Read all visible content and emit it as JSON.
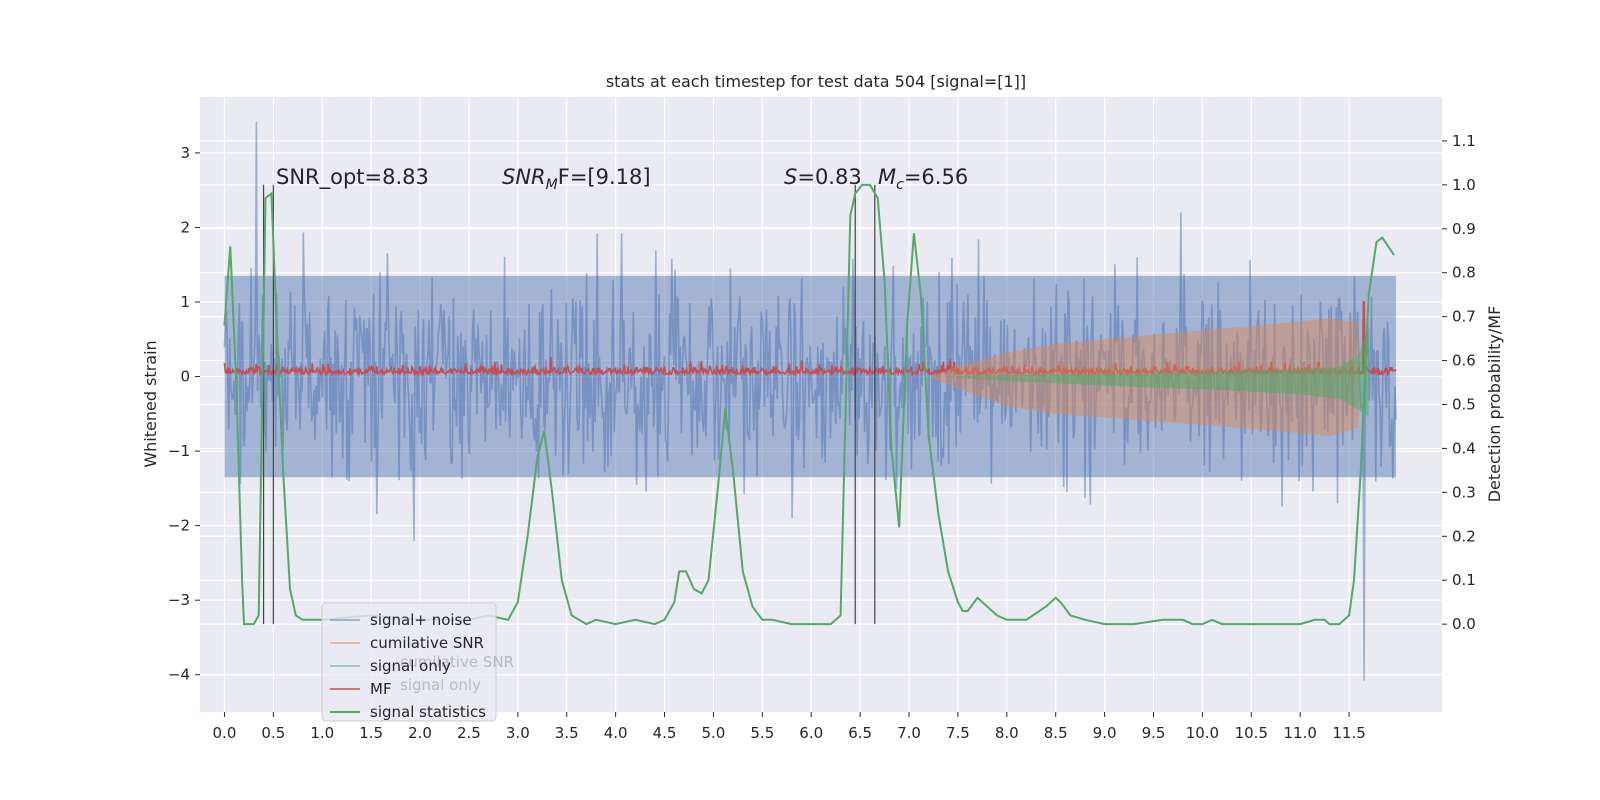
{
  "chart_data": {
    "type": "line",
    "title": "stats at each timestep for test data 504 [signal=[1]]",
    "ylabel": "Whitened strain",
    "y2label": "Detection probability/MF",
    "xlim": [
      -0.25,
      12.45
    ],
    "ylim": [
      -4.5,
      3.75
    ],
    "y2lim": [
      -0.2,
      1.2
    ],
    "grid": true,
    "x_ticks": [
      "0.0",
      "0.5",
      "1.0",
      "1.5",
      "2.0",
      "2.5",
      "3.0",
      "3.5",
      "4.0",
      "4.5",
      "5.0",
      "5.5",
      "6.0",
      "6.5",
      "7.0",
      "7.5",
      "8.0",
      "8.5",
      "9.0",
      "9.5",
      "10.0",
      "10.5",
      "11.0",
      "11.5"
    ],
    "y_ticks": [
      "3",
      "2",
      "1",
      "0",
      "−1",
      "−2",
      "−3",
      "−4"
    ],
    "y2_ticks": [
      "1.1",
      "1.0",
      "0.9",
      "0.8",
      "0.7",
      "0.6",
      "0.5",
      "0.4",
      "0.3",
      "0.2",
      "0.1",
      "0.0"
    ],
    "annotations": {
      "snr_opt": "SNR_opt=8.83",
      "snr_mf_sym": "SNR",
      "snr_mf_sub": "M",
      "snr_mf_rest": "F=[9.18]",
      "s_sym": "S",
      "s_val": "=0.83",
      "mc_sym": "M",
      "mc_sub": "c",
      "mc_val": "=6.56"
    },
    "legend": {
      "location": "lower left",
      "entries": [
        {
          "label": "signal+ noise",
          "color": "#4c72b0"
        },
        {
          "label": "cumilative SNR",
          "color": "#dd8452"
        },
        {
          "label": "signal only",
          "color": "#55a868"
        },
        {
          "label": "MF",
          "color": "#c44e52"
        },
        {
          "label": "signal statistics",
          "color": "#55a868"
        }
      ],
      "ghost_labels": [
        "cumilative SNR",
        "signal only"
      ]
    },
    "series": [
      {
        "name": "signal+ noise",
        "color": "#4c72b0",
        "envelope": {
          "x_range": [
            0.0,
            11.98
          ],
          "upper_typical": 1.9,
          "lower_typical": -1.9,
          "peak_high": 3.42,
          "peak_low": -4.08
        }
      },
      {
        "name": "MF",
        "color": "#c44e52",
        "envelope": {
          "x_range": [
            0.0,
            11.98
          ],
          "base": 0.03,
          "typical_high": 0.2,
          "spike": {
            "x": 11.65,
            "y": 1.0
          }
        }
      },
      {
        "name": "cumilative SNR",
        "color": "#dd8452",
        "band": {
          "x": [
            7.2,
            7.5,
            8.0,
            8.5,
            9.0,
            9.5,
            10.0,
            10.5,
            11.0,
            11.3,
            11.6
          ],
          "upper": [
            0.0,
            0.14,
            0.32,
            0.44,
            0.5,
            0.56,
            0.62,
            0.68,
            0.74,
            0.78,
            0.72
          ],
          "lower": [
            0.0,
            -0.16,
            -0.4,
            -0.5,
            -0.55,
            -0.6,
            -0.65,
            -0.7,
            -0.76,
            -0.8,
            -0.68
          ]
        }
      },
      {
        "name": "signal only",
        "color": "#55a868",
        "band": {
          "x": [
            7.3,
            8.0,
            8.5,
            9.0,
            9.5,
            10.0,
            10.5,
            11.0,
            11.4,
            11.6,
            11.7
          ],
          "upper": [
            0.0,
            0.02,
            0.03,
            0.04,
            0.05,
            0.06,
            0.08,
            0.1,
            0.13,
            0.3,
            0.7
          ],
          "lower": [
            0.0,
            -0.06,
            -0.09,
            -0.12,
            -0.15,
            -0.17,
            -0.2,
            -0.24,
            -0.3,
            -0.45,
            -0.55
          ]
        }
      },
      {
        "name": "signal statistics",
        "color": "#55a868",
        "axis": "right",
        "x": [
          0.0,
          0.06,
          0.12,
          0.18,
          0.2,
          0.3,
          0.35,
          0.42,
          0.48,
          0.53,
          0.6,
          0.67,
          0.73,
          0.8,
          1.0,
          1.5,
          2.0,
          2.5,
          2.7,
          2.9,
          3.0,
          3.1,
          3.2,
          3.27,
          3.35,
          3.45,
          3.55,
          3.7,
          3.8,
          4.0,
          4.2,
          4.4,
          4.5,
          4.6,
          4.65,
          4.72,
          4.8,
          4.88,
          4.95,
          5.05,
          5.12,
          5.2,
          5.3,
          5.4,
          5.5,
          5.6,
          5.8,
          6.0,
          6.2,
          6.3,
          6.4,
          6.45,
          6.52,
          6.6,
          6.68,
          6.75,
          6.82,
          6.9,
          6.98,
          7.05,
          7.12,
          7.2,
          7.3,
          7.4,
          7.5,
          7.55,
          7.6,
          7.7,
          7.8,
          7.9,
          8.0,
          8.2,
          8.4,
          8.5,
          8.55,
          8.65,
          8.8,
          9.0,
          9.3,
          9.6,
          9.8,
          9.9,
          10.0,
          10.1,
          10.2,
          10.4,
          10.6,
          10.8,
          11.0,
          11.15,
          11.25,
          11.3,
          11.4,
          11.5,
          11.55,
          11.62,
          11.7,
          11.78,
          11.84,
          11.9,
          11.96
        ],
        "y": [
          0.68,
          0.86,
          0.55,
          0.1,
          0.0,
          0.0,
          0.02,
          0.97,
          0.98,
          0.7,
          0.35,
          0.08,
          0.02,
          0.01,
          0.01,
          0.02,
          0.01,
          0.01,
          0.02,
          0.01,
          0.05,
          0.2,
          0.38,
          0.44,
          0.3,
          0.1,
          0.02,
          0.0,
          0.01,
          0.0,
          0.01,
          0.0,
          0.01,
          0.05,
          0.12,
          0.12,
          0.08,
          0.07,
          0.1,
          0.32,
          0.49,
          0.35,
          0.12,
          0.04,
          0.01,
          0.01,
          0.0,
          0.0,
          0.0,
          0.02,
          0.93,
          0.98,
          1.0,
          1.0,
          0.97,
          0.78,
          0.4,
          0.22,
          0.68,
          0.89,
          0.75,
          0.43,
          0.25,
          0.12,
          0.05,
          0.03,
          0.03,
          0.06,
          0.04,
          0.02,
          0.01,
          0.01,
          0.04,
          0.06,
          0.05,
          0.02,
          0.01,
          0.0,
          0.0,
          0.01,
          0.01,
          0.0,
          0.0,
          0.01,
          0.0,
          0.0,
          0.0,
          0.0,
          0.0,
          0.01,
          0.01,
          0.0,
          0.0,
          0.02,
          0.1,
          0.35,
          0.75,
          0.87,
          0.88,
          0.86,
          0.84
        ]
      },
      {
        "name": "markers",
        "color": "#444444",
        "vlines_x": [
          0.4,
          0.5,
          6.45,
          6.65
        ],
        "y_range": [
          0.0,
          1.0
        ]
      }
    ]
  }
}
